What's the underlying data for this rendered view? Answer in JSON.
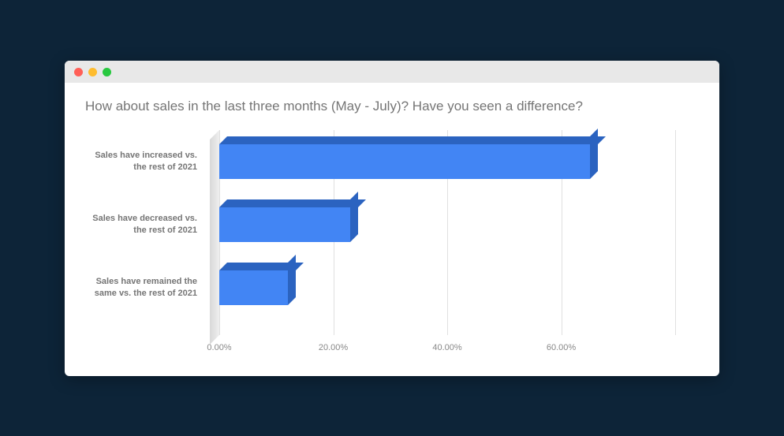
{
  "page_background": "#0d2438",
  "window": {
    "title_dots": [
      "#ff5f57",
      "#febc2e",
      "#28c840"
    ],
    "titlebar_color": "#e8e8e8"
  },
  "chart": {
    "type": "bar",
    "orientation": "horizontal",
    "style": "3d",
    "title": "How about sales in the last three months (May - July)? Have you seen a difference?",
    "title_fontsize": 17,
    "title_color": "#757575",
    "bar_color": "#4285f4",
    "bar_top_color": "#2b63c0",
    "bar_side_color": "#2b63c0",
    "grid_color": "#e0e0e0",
    "label_color": "#757575",
    "label_fontsize": 11,
    "tick_fontsize": 11,
    "tick_color": "#888888",
    "xlim": [
      0,
      80
    ],
    "xtick_step": 20,
    "xticks": [
      "0.00%",
      "20.00%",
      "40.00%",
      "60.00%"
    ],
    "categories": [
      "Sales have increased vs. the rest of 2021",
      "Sales have decreased vs. the rest of 2021",
      "Sales have remained the same vs. the rest of 2021"
    ],
    "values": [
      65,
      23,
      12
    ],
    "bar_row_height": 56,
    "bar_depth": 10
  }
}
